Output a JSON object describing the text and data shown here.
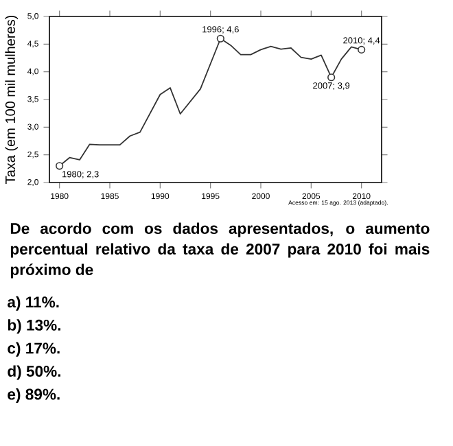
{
  "chart_data": {
    "type": "line",
    "ylabel": "Taxa (em 100 mil mulheres)",
    "x": [
      1980,
      1981,
      1982,
      1983,
      1984,
      1986,
      1987,
      1988,
      1990,
      1991,
      1992,
      1994,
      1996,
      1997,
      1998,
      1999,
      2000,
      2001,
      2002,
      2003,
      2004,
      2005,
      2006,
      2007,
      2008,
      2009,
      2010
    ],
    "series": [
      {
        "color": "#333333",
        "marker": "none",
        "values": [
          2.3,
          2.45,
          2.41,
          2.69,
          2.68,
          2.68,
          2.84,
          2.91,
          3.59,
          3.71,
          3.24,
          3.69,
          4.6,
          4.48,
          4.31,
          4.31,
          4.4,
          4.46,
          4.41,
          4.43,
          4.26,
          4.23,
          4.3,
          3.9,
          4.23,
          4.45,
          4.4
        ]
      },
      {
        "type": "scatter",
        "color": "#333333",
        "marker": "circle",
        "x": [
          1980,
          1996,
          2007,
          2010
        ],
        "values": [
          2.3,
          4.6,
          3.9,
          4.4
        ]
      }
    ],
    "xlim": [
      1979,
      2012
    ],
    "ylim": [
      2,
      5
    ],
    "xticks": [
      1980,
      1985,
      1990,
      1995,
      2000,
      2005,
      2010
    ],
    "yticks": [
      {
        "value": 2,
        "label": "2,0"
      },
      {
        "value": 2.5,
        "label": "2,5"
      },
      {
        "value": 3,
        "label": "3,0"
      },
      {
        "value": 3.5,
        "label": "3,5"
      },
      {
        "value": 4,
        "label": "4,0"
      },
      {
        "value": 4.5,
        "label": "4,5"
      },
      {
        "value": 5,
        "label": "5,0"
      }
    ],
    "annotations": [
      {
        "text": "1980; 2,3",
        "x": 1980,
        "y": 2.3
      },
      {
        "text": "1996; 4,6",
        "x": 1996,
        "y": 4.6
      },
      {
        "text": "2007; 3,9",
        "x": 2007,
        "y": 3.9
      },
      {
        "text": "2010; 4,4",
        "x": 2010,
        "y": 4.4
      },
      "Acesso em: 15 ago. 2013 (adaptado).",
      "De acordo com os dados apresentados, o aumento percentual relativo da taxa de 2007 para 2010 foi mais próximo de",
      "a) 11%.",
      "b) 13%.",
      "c) 17%.",
      "d) 50%.",
      "e) 89%."
    ]
  }
}
